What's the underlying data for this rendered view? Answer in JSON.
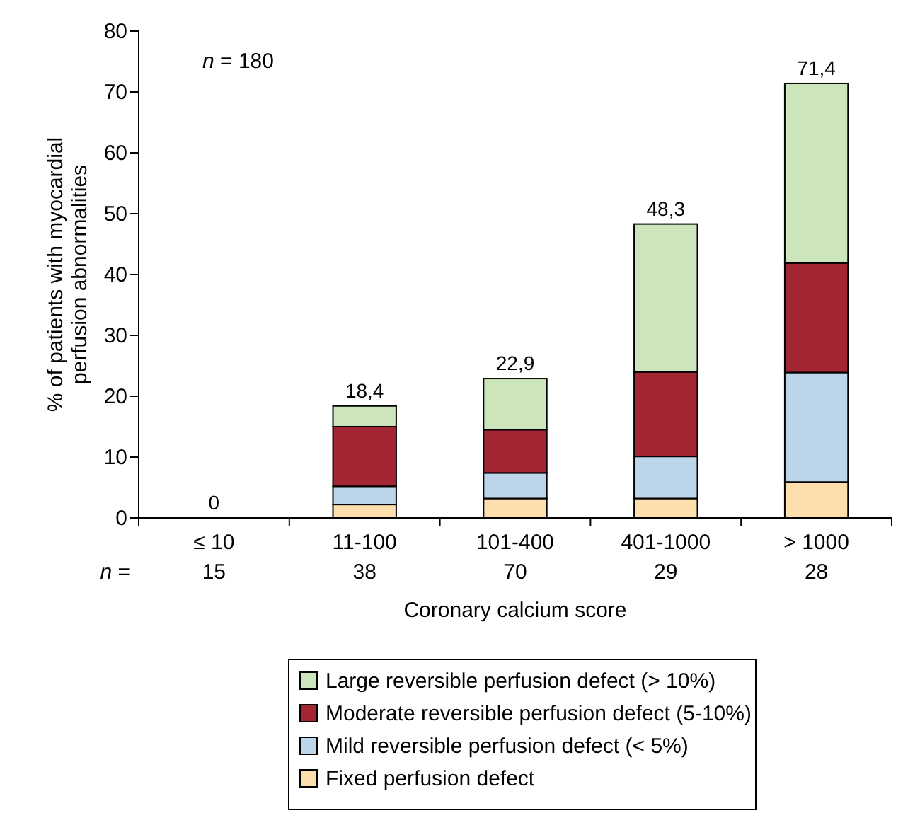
{
  "chart_data": {
    "type": "bar",
    "stacked": true,
    "xlabel": "Coronary calcium score",
    "ylabel": "% of patients with myocardial\nperfusion abnormalities",
    "categories": [
      "≤ 10\n15",
      "11-100\n38",
      "101-400\n70",
      "401-1000\n29",
      "> 1000\n28"
    ],
    "series": [
      {
        "name": "Fixed perfusion defect",
        "color": "#fddfad",
        "values": [
          0,
          2.2,
          3.2,
          3.2,
          5.9
        ]
      },
      {
        "name": "Mild reversible perfusion defect (< 5%)",
        "color": "#bcd5e8",
        "values": [
          0,
          3.0,
          4.2,
          6.9,
          18.0
        ]
      },
      {
        "name": "Moderate reversible perfusion defect (5-10%)",
        "color": "#a32633",
        "values": [
          0,
          9.8,
          7.1,
          13.9,
          18.0
        ]
      },
      {
        "name": "Large reversible perfusion defect (> 10%)",
        "color": "#cce5bb",
        "values": [
          0,
          3.4,
          8.4,
          24.3,
          29.5
        ]
      }
    ],
    "totals": [
      "0",
      "18,4",
      "22,9",
      "48,3",
      "71,4"
    ],
    "ylim": [
      0,
      80
    ],
    "yticks": [
      0,
      10,
      20,
      30,
      40,
      50,
      60,
      70,
      80
    ],
    "grid": false,
    "legend": "bottom",
    "annotations": [
      "n = 180",
      "n ="
    ]
  }
}
